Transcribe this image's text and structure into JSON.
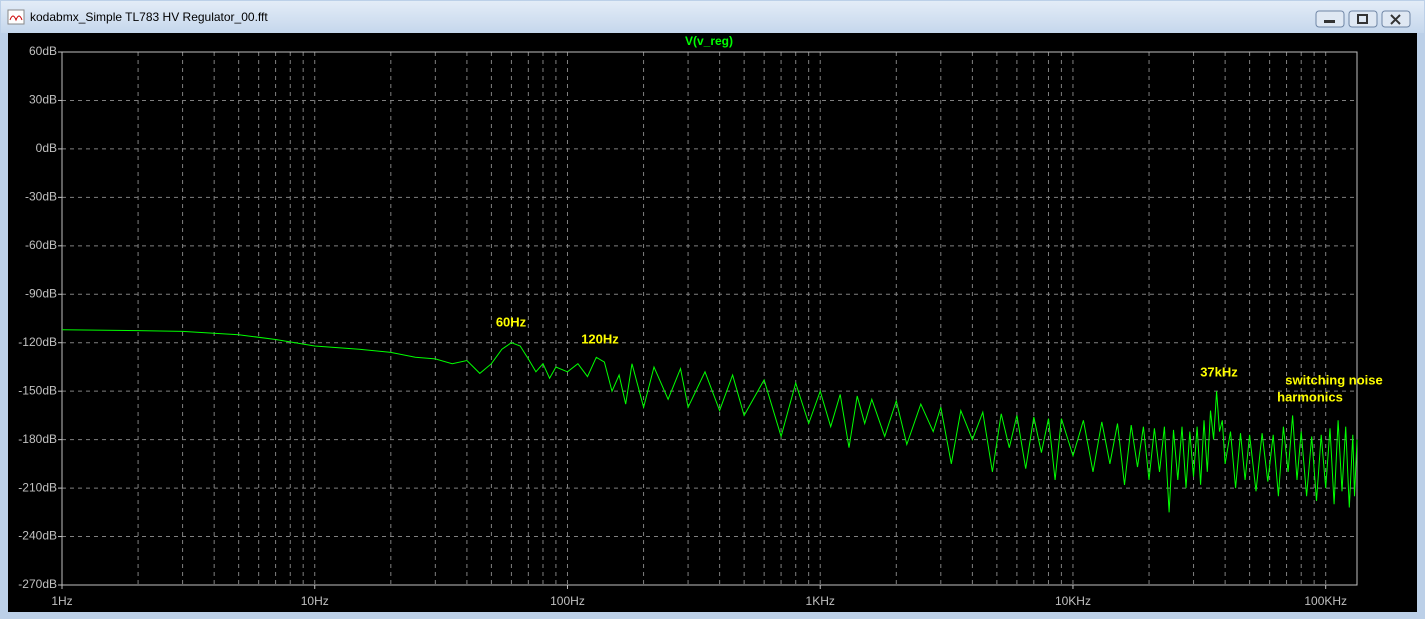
{
  "window": {
    "title": "kodabmx_Simple TL783 HV Regulator_00.fft"
  },
  "chart_data": {
    "type": "line",
    "title": "V(v_reg)",
    "log_x": true,
    "grid": true,
    "xlim": [
      1,
      133000
    ],
    "ylim": [
      -270,
      60
    ],
    "xticks": [
      {
        "value": 1,
        "label": "1Hz"
      },
      {
        "value": 10,
        "label": "10Hz"
      },
      {
        "value": 100,
        "label": "100Hz"
      },
      {
        "value": 1000,
        "label": "1KHz"
      },
      {
        "value": 10000,
        "label": "10KHz"
      },
      {
        "value": 100000,
        "label": "100KHz"
      }
    ],
    "yticks": [
      {
        "value": 60,
        "label": "60dB"
      },
      {
        "value": 30,
        "label": "30dB"
      },
      {
        "value": 0,
        "label": "0dB"
      },
      {
        "value": -30,
        "label": "-30dB"
      },
      {
        "value": -60,
        "label": "-60dB"
      },
      {
        "value": -90,
        "label": "-90dB"
      },
      {
        "value": -120,
        "label": "-120dB"
      },
      {
        "value": -150,
        "label": "-150dB"
      },
      {
        "value": -180,
        "label": "-180dB"
      },
      {
        "value": -210,
        "label": "-210dB"
      },
      {
        "value": -240,
        "label": "-240dB"
      },
      {
        "value": -270,
        "label": "-270dB"
      }
    ],
    "annotations": [
      "60Hz",
      "120Hz",
      "37kHz",
      "switching noise",
      "harmonics"
    ],
    "series": [
      {
        "name": "V(v_reg)",
        "color": "#00ff00",
        "x": [
          1,
          2,
          3,
          5,
          7,
          10,
          15,
          20,
          25,
          30,
          35,
          40,
          45,
          50,
          55,
          60,
          65,
          70,
          75,
          80,
          85,
          90,
          100,
          110,
          120,
          130,
          140,
          150,
          160,
          170,
          180,
          200,
          220,
          250,
          280,
          300,
          350,
          400,
          450,
          500,
          600,
          700,
          800,
          900,
          1000,
          1100,
          1200,
          1300,
          1400,
          1500,
          1600,
          1800,
          2000,
          2200,
          2500,
          2800,
          3000,
          3300,
          3600,
          4000,
          4400,
          4800,
          5200,
          5600,
          6000,
          6500,
          7000,
          7500,
          8000,
          8500,
          9000,
          10000,
          11000,
          12000,
          13000,
          14000,
          15000,
          16000,
          17000,
          18000,
          19000,
          20000,
          21000,
          22000,
          23000,
          24000,
          25000,
          26000,
          27000,
          28000,
          29000,
          30000,
          31000,
          32000,
          33000,
          34000,
          35000,
          36000,
          37000,
          38000,
          39000,
          40000,
          42000,
          44000,
          46000,
          48000,
          50000,
          53000,
          56000,
          59000,
          62000,
          65000,
          68000,
          71000,
          74000,
          77000,
          80000,
          84000,
          88000,
          92000,
          96000,
          100000,
          104000,
          108000,
          112000,
          116000,
          120000,
          124000,
          128000,
          130000,
          133000
        ],
        "values": [
          -112,
          -112.5,
          -113,
          -115,
          -118,
          -122,
          -124,
          -126,
          -129,
          -130,
          -133,
          -131,
          -139,
          -133,
          -124,
          -120,
          -122,
          -130,
          -138,
          -133,
          -142,
          -135,
          -138,
          -133,
          -141,
          -129,
          -132,
          -150,
          -140,
          -158,
          -133,
          -160,
          -135,
          -155,
          -136,
          -160,
          -138,
          -162,
          -140,
          -165,
          -143,
          -178,
          -145,
          -170,
          -150,
          -172,
          -152,
          -185,
          -153,
          -170,
          -155,
          -178,
          -156,
          -183,
          -158,
          -175,
          -160,
          -195,
          -162,
          -180,
          -163,
          -200,
          -164,
          -185,
          -165,
          -198,
          -166,
          -188,
          -167,
          -205,
          -167,
          -190,
          -168,
          -200,
          -169,
          -195,
          -170,
          -208,
          -171,
          -197,
          -172,
          -205,
          -173,
          -200,
          -172,
          -225,
          -174,
          -205,
          -172,
          -210,
          -175,
          -203,
          -172,
          -208,
          -168,
          -200,
          -162,
          -180,
          -150,
          -175,
          -168,
          -195,
          -175,
          -210,
          -176,
          -205,
          -177,
          -212,
          -176,
          -206,
          -177,
          -215,
          -172,
          -200,
          -165,
          -205,
          -175,
          -215,
          -178,
          -218,
          -177,
          -210,
          -173,
          -220,
          -168,
          -212,
          -172,
          -222,
          -177,
          -215,
          -180
        ]
      }
    ]
  }
}
